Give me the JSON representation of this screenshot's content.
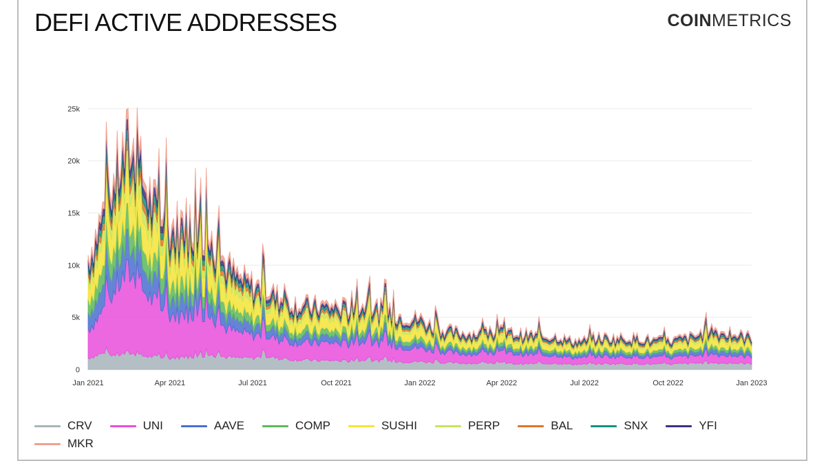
{
  "header": {
    "title": "DEFI ACTIVE ADDRESSES",
    "brand_bold": "COIN",
    "brand_light": "METRICS"
  },
  "chart_data": {
    "type": "area",
    "stacked": true,
    "title": "DEFI ACTIVE ADDRESSES",
    "xlabel": "",
    "ylabel": "",
    "ylim": [
      0,
      27500
    ],
    "yticks": [
      0,
      5000,
      10000,
      15000,
      20000,
      25000
    ],
    "ytick_labels": [
      "0",
      "5k",
      "10k",
      "15k",
      "20k",
      "25k"
    ],
    "xlim": [
      "2021-01-01",
      "2023-01-01"
    ],
    "xticks": [
      "2021-01-01",
      "2021-04-01",
      "2021-07-01",
      "2021-10-01",
      "2022-01-01",
      "2022-04-01",
      "2022-07-01",
      "2022-10-01",
      "2023-01-01"
    ],
    "xtick_labels": [
      "Jan 2021",
      "Apr 2021",
      "Jul 2021",
      "Oct 2021",
      "Jan 2022",
      "Apr 2022",
      "Jul 2022",
      "Oct 2022",
      "Jan 2023"
    ],
    "grid": true,
    "legend_position": "bottom",
    "x": [
      "2021-01-01",
      "2021-01-15",
      "2021-02-01",
      "2021-02-15",
      "2021-03-01",
      "2021-03-15",
      "2021-04-01",
      "2021-04-15",
      "2021-05-01",
      "2021-05-15",
      "2021-06-01",
      "2021-06-15",
      "2021-07-01",
      "2021-07-15",
      "2021-08-01",
      "2021-08-15",
      "2021-09-01",
      "2021-09-15",
      "2021-10-01",
      "2021-10-15",
      "2021-11-01",
      "2021-11-15",
      "2021-12-01",
      "2021-12-15",
      "2022-01-01",
      "2022-01-15",
      "2022-02-01",
      "2022-02-15",
      "2022-03-01",
      "2022-03-15",
      "2022-04-01",
      "2022-04-15",
      "2022-05-01",
      "2022-05-15",
      "2022-06-01",
      "2022-06-15",
      "2022-07-01",
      "2022-07-15",
      "2022-08-01",
      "2022-08-15",
      "2022-09-01",
      "2022-09-15",
      "2022-10-01",
      "2022-10-15",
      "2022-11-01",
      "2022-11-15",
      "2022-12-01",
      "2022-12-15",
      "2023-01-01"
    ],
    "series": [
      {
        "name": "CRV",
        "color": "#a7b4bb",
        "values": [
          1100,
          1500,
          1400,
          1600,
          1300,
          1200,
          1100,
          1200,
          1300,
          1400,
          1200,
          1100,
          1100,
          1300,
          1000,
          950,
          900,
          850,
          850,
          800,
          900,
          850,
          800,
          750,
          750,
          700,
          650,
          600,
          600,
          600,
          600,
          550,
          550,
          550,
          600,
          500,
          500,
          550,
          550,
          550,
          550,
          500,
          500,
          550,
          600,
          650,
          600,
          600,
          550
        ]
      },
      {
        "name": "UNI",
        "color": "#e84ddb",
        "values": [
          2800,
          3800,
          6500,
          7800,
          6500,
          5200,
          4200,
          4000,
          4300,
          3700,
          2800,
          2400,
          2200,
          2000,
          1800,
          1700,
          1600,
          1700,
          1700,
          1600,
          1800,
          1700,
          1500,
          1400,
          1300,
          1100,
          1000,
          900,
          900,
          900,
          1000,
          950,
          900,
          800,
          800,
          650,
          650,
          750,
          700,
          700,
          700,
          650,
          600,
          650,
          700,
          900,
          750,
          700,
          700
        ]
      },
      {
        "name": "AAVE",
        "color": "#4a6fd0",
        "values": [
          1600,
          2000,
          2400,
          2600,
          2200,
          1800,
          1600,
          1700,
          1600,
          1400,
          1200,
          1000,
          900,
          850,
          750,
          700,
          650,
          650,
          650,
          600,
          650,
          600,
          550,
          500,
          500,
          400,
          350,
          350,
          350,
          350,
          350,
          350,
          350,
          330,
          330,
          300,
          300,
          330,
          330,
          330,
          330,
          300,
          300,
          320,
          350,
          450,
          400,
          380,
          350
        ]
      },
      {
        "name": "COMP",
        "color": "#5cb85c",
        "values": [
          1300,
          1700,
          2000,
          2200,
          1900,
          1600,
          1500,
          1500,
          1400,
          1200,
          1000,
          850,
          800,
          700,
          650,
          600,
          550,
          550,
          550,
          520,
          550,
          520,
          480,
          450,
          450,
          380,
          330,
          320,
          320,
          320,
          330,
          320,
          310,
          300,
          300,
          260,
          260,
          300,
          300,
          300,
          300,
          260,
          260,
          280,
          300,
          380,
          330,
          310,
          300
        ]
      },
      {
        "name": "SUSHI",
        "color": "#f5e337",
        "values": [
          1600,
          2200,
          2800,
          3200,
          2800,
          2400,
          2200,
          2400,
          2200,
          2000,
          1700,
          1400,
          1300,
          1200,
          1100,
          1050,
          1000,
          1000,
          1000,
          950,
          1000,
          950,
          900,
          850,
          800,
          650,
          550,
          550,
          550,
          550,
          550,
          520,
          500,
          480,
          480,
          420,
          420,
          480,
          450,
          450,
          450,
          420,
          420,
          450,
          500,
          650,
          550,
          520,
          500
        ]
      },
      {
        "name": "PERP",
        "color": "#c6e55b",
        "values": [
          700,
          900,
          1100,
          1300,
          1200,
          1000,
          900,
          950,
          900,
          800,
          700,
          600,
          550,
          500,
          450,
          420,
          400,
          400,
          400,
          380,
          400,
          380,
          350,
          330,
          320,
          280,
          250,
          240,
          240,
          240,
          250,
          240,
          230,
          220,
          220,
          200,
          200,
          220,
          220,
          220,
          220,
          200,
          200,
          210,
          230,
          300,
          260,
          240,
          230
        ]
      },
      {
        "name": "BAL",
        "color": "#e0732c",
        "values": [
          450,
          600,
          750,
          850,
          750,
          650,
          600,
          620,
          580,
          520,
          450,
          380,
          350,
          320,
          300,
          280,
          260,
          260,
          260,
          250,
          260,
          250,
          230,
          220,
          210,
          180,
          160,
          160,
          160,
          160,
          160,
          150,
          150,
          140,
          140,
          130,
          130,
          140,
          140,
          140,
          140,
          130,
          130,
          140,
          150,
          200,
          170,
          160,
          150
        ]
      },
      {
        "name": "SNX",
        "color": "#14907f",
        "values": [
          500,
          650,
          800,
          900,
          800,
          700,
          650,
          650,
          620,
          560,
          480,
          400,
          380,
          350,
          320,
          300,
          280,
          280,
          280,
          270,
          280,
          270,
          250,
          240,
          230,
          200,
          180,
          170,
          170,
          170,
          170,
          160,
          160,
          150,
          150,
          140,
          140,
          150,
          150,
          150,
          150,
          140,
          140,
          150,
          160,
          220,
          180,
          170,
          160
        ]
      },
      {
        "name": "YFI",
        "color": "#3d2f85",
        "values": [
          500,
          650,
          800,
          900,
          800,
          700,
          650,
          650,
          600,
          540,
          460,
          380,
          360,
          330,
          300,
          280,
          260,
          260,
          260,
          250,
          260,
          250,
          230,
          220,
          210,
          180,
          160,
          160,
          160,
          160,
          160,
          150,
          150,
          140,
          140,
          130,
          130,
          140,
          140,
          140,
          140,
          130,
          130,
          140,
          150,
          200,
          170,
          160,
          150
        ]
      },
      {
        "name": "MKR",
        "color": "#f0a08f",
        "values": [
          450,
          600,
          750,
          850,
          750,
          650,
          600,
          600,
          560,
          500,
          430,
          360,
          340,
          310,
          280,
          260,
          240,
          240,
          240,
          230,
          240,
          230,
          210,
          200,
          200,
          170,
          150,
          150,
          150,
          150,
          150,
          140,
          140,
          130,
          130,
          120,
          120,
          130,
          130,
          130,
          130,
          120,
          120,
          130,
          140,
          190,
          160,
          150,
          140
        ]
      }
    ]
  }
}
